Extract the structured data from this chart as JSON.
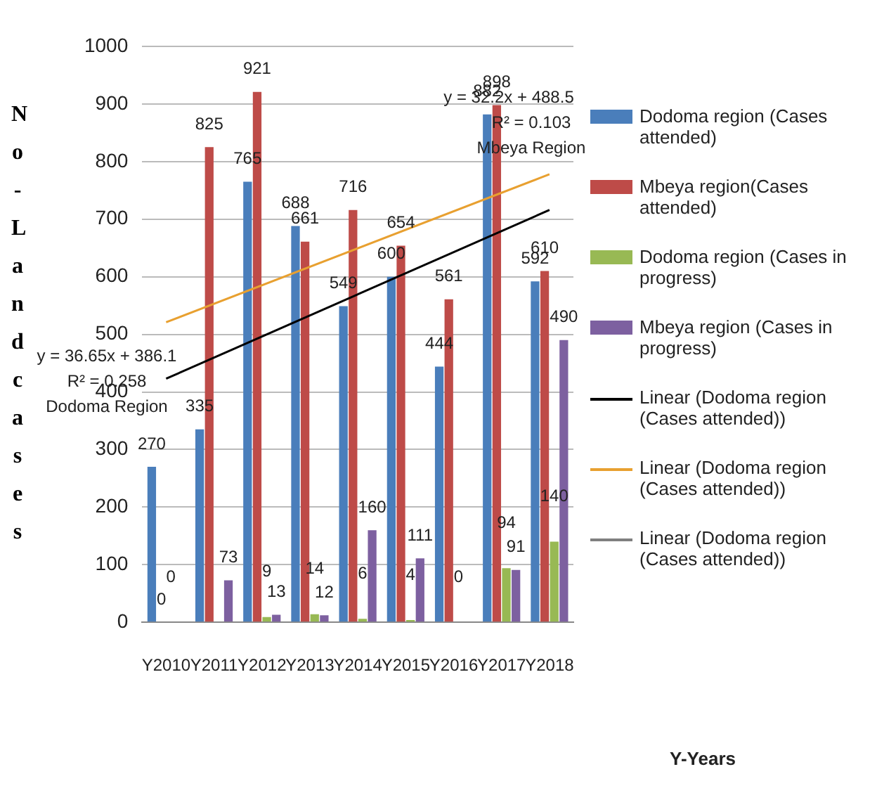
{
  "chart_data": {
    "type": "bar",
    "ylabel": "No-Landcases",
    "categories": [
      "Y2010",
      "Y2011",
      "Y2012",
      "Y2013",
      "Y2014",
      "Y2015",
      "Y2016",
      "Y2017",
      "Y2018"
    ],
    "series": [
      {
        "name": "Dodoma region (Cases attended)",
        "color": "#4a7ebb",
        "values": [
          270,
          335,
          765,
          688,
          549,
          600,
          444,
          882,
          592
        ],
        "value_labels": [
          "270",
          "335",
          "765",
          "688",
          "549",
          "600",
          "444",
          "882",
          "592"
        ]
      },
      {
        "name": "Mbeya region(Cases attended)",
        "color": "#be4b48",
        "values": [
          0,
          825,
          921,
          661,
          716,
          654,
          561,
          898,
          610
        ],
        "value_labels": [
          "0",
          "825",
          "921",
          "661",
          "716",
          "654",
          "561",
          "898",
          "610"
        ]
      },
      {
        "name": "Dodoma region (Cases in progress)",
        "color": "#98b954",
        "values": [
          0,
          null,
          9,
          14,
          6,
          4,
          0,
          94,
          140
        ],
        "value_labels": [
          "0",
          null,
          "9",
          "14",
          "6",
          "4",
          "0",
          "94",
          "140"
        ]
      },
      {
        "name": "Mbeya region (Cases in progress)",
        "color": "#7d60a0",
        "values": [
          null,
          73,
          13,
          12,
          160,
          111,
          null,
          91,
          490
        ],
        "value_labels": [
          null,
          "73",
          "13",
          "12",
          "160",
          "111",
          null,
          "91",
          "490"
        ]
      },
      {
        "name": "Linear (Dodoma region (Cases attended))",
        "type": "line",
        "color": "#000000",
        "x": [
          "Y2010",
          "Y2018"
        ],
        "values": [
          423,
          716
        ]
      },
      {
        "name": "Linear (Dodoma region (Cases attended))",
        "type": "line",
        "color": "#e8a030",
        "x": [
          "Y2010",
          "Y2018"
        ],
        "values": [
          521,
          778
        ]
      },
      {
        "name": "Linear (Dodoma region (Cases attended))",
        "type": "line",
        "color": "#808080",
        "x": [
          "Y2010",
          "Y2018"
        ],
        "values": [
          null,
          null
        ]
      }
    ],
    "ylim": [
      0,
      1000
    ],
    "yticks": [
      0,
      100,
      200,
      300,
      400,
      500,
      600,
      700,
      800,
      900,
      1000
    ],
    "grid": "y",
    "legend": "right",
    "annotations": [
      "y = 36.65x + 386.1",
      "R² = 0.258",
      "Dodoma Region",
      "y = 32.2x + 488.5",
      "R² = 0.103",
      "Mbeya Region",
      "Y-Years"
    ]
  }
}
